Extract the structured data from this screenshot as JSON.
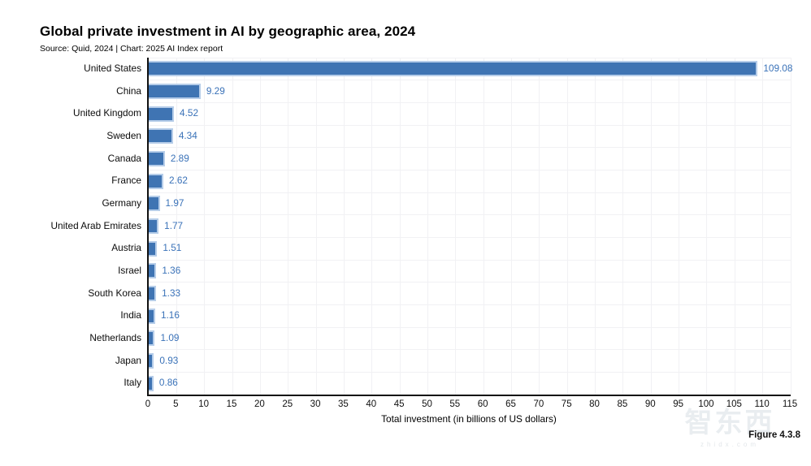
{
  "chart_data": {
    "type": "bar",
    "orientation": "horizontal",
    "title": "Global private investment in AI by geographic area, 2024",
    "subtitle": "Source: Quid, 2024 | Chart: 2025 AI Index report",
    "categories": [
      "United States",
      "China",
      "United Kingdom",
      "Sweden",
      "Canada",
      "France",
      "Germany",
      "United Arab Emirates",
      "Austria",
      "Israel",
      "South Korea",
      "India",
      "Netherlands",
      "Japan",
      "Italy"
    ],
    "values": [
      109.08,
      9.29,
      4.52,
      4.34,
      2.89,
      2.62,
      1.97,
      1.77,
      1.51,
      1.36,
      1.33,
      1.16,
      1.09,
      0.93,
      0.86
    ],
    "value_labels": [
      "109.08",
      "9.29",
      "4.52",
      "4.34",
      "2.89",
      "2.62",
      "1.97",
      "1.77",
      "1.51",
      "1.36",
      "1.33",
      "1.16",
      "1.09",
      "0.93",
      "0.86"
    ],
    "xlabel": "Total investment (in billions of US dollars)",
    "xlim": [
      0,
      115
    ],
    "xticks": [
      0,
      5,
      10,
      15,
      20,
      25,
      30,
      35,
      40,
      45,
      50,
      55,
      60,
      65,
      70,
      75,
      80,
      85,
      90,
      95,
      100,
      105,
      110,
      115
    ],
    "grid": true,
    "legend": "none",
    "colors": {
      "bar_fill": "#3f74b3",
      "bar_border": "#b6cde9",
      "value_text": "#3a72b8",
      "axis": "#111111",
      "grid": "#f1f1f4"
    }
  },
  "footer": {
    "figure_label": "Figure 4.3.8",
    "watermark_text": "智东西",
    "watermark_sub": "zhidx.com"
  }
}
